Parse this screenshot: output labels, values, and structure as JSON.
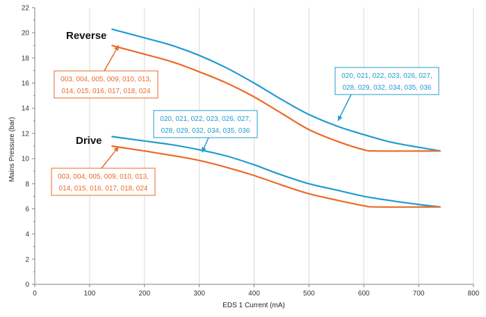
{
  "colors": {
    "blue": "#1f9bd1",
    "orange": "#ea6a26",
    "grid": "#d9d9d9",
    "axis": "#7f7f7f"
  },
  "chart_data": {
    "type": "line",
    "title": "",
    "xlabel": "EDS 1 Current (mA)",
    "ylabel": "Mains Pressure (bar)",
    "xlim": [
      0,
      800
    ],
    "ylim": [
      0,
      22
    ],
    "xticks": [
      0,
      100,
      200,
      300,
      400,
      500,
      600,
      700,
      800
    ],
    "yticks": [
      0,
      2,
      4,
      6,
      8,
      10,
      12,
      14,
      16,
      18,
      20,
      22
    ],
    "grid": {
      "x": true,
      "y": false
    },
    "legend": "none",
    "groups": [
      {
        "label": "Reverse"
      },
      {
        "label": "Drive"
      }
    ],
    "series": [
      {
        "group": "Reverse",
        "color": "#1f9bd1",
        "x": [
          140,
          200,
          250,
          300,
          350,
          400,
          450,
          500,
          550,
          600,
          650,
          700,
          740
        ],
        "y": [
          20.3,
          19.6,
          19.0,
          18.2,
          17.2,
          16.0,
          14.7,
          13.5,
          12.6,
          11.9,
          11.3,
          10.9,
          10.6
        ]
      },
      {
        "group": "Reverse",
        "color": "#ea6a26",
        "x": [
          140,
          200,
          250,
          300,
          350,
          400,
          450,
          500,
          550,
          600,
          625,
          740
        ],
        "y": [
          19.0,
          18.3,
          17.7,
          16.9,
          16.0,
          14.9,
          13.6,
          12.3,
          11.4,
          10.7,
          10.6,
          10.6
        ]
      },
      {
        "group": "Drive",
        "color": "#1f9bd1",
        "x": [
          140,
          200,
          250,
          300,
          350,
          400,
          450,
          500,
          550,
          600,
          650,
          700,
          740
        ],
        "y": [
          11.75,
          11.4,
          11.1,
          10.7,
          10.2,
          9.5,
          8.7,
          8.0,
          7.5,
          7.0,
          6.65,
          6.35,
          6.15
        ]
      },
      {
        "group": "Drive",
        "color": "#ea6a26",
        "x": [
          140,
          200,
          250,
          300,
          350,
          400,
          450,
          500,
          550,
          600,
          625,
          740
        ],
        "y": [
          11.0,
          10.6,
          10.25,
          9.85,
          9.3,
          8.65,
          7.9,
          7.2,
          6.7,
          6.25,
          6.15,
          6.15
        ]
      }
    ],
    "annotations": [
      {
        "lines": [
          "003, 004, 005, 009, 010, 013,",
          "014, 015, 016, 017, 018, 024"
        ],
        "color": "#ea6a26",
        "target": [
          153,
          19.0
        ]
      },
      {
        "lines": [
          "020, 021, 022, 023, 026, 027,",
          "028, 029, 032, 034, 035, 036"
        ],
        "color": "#1f9bd1",
        "target": [
          553,
          13.0
        ]
      },
      {
        "lines": [
          "020, 021, 022, 023, 026, 027,",
          "028, 029, 032, 034, 035, 036"
        ],
        "color": "#1f9bd1",
        "target": [
          305,
          10.5
        ]
      },
      {
        "lines": [
          "003, 004, 005, 009, 010, 013,",
          "014, 015, 016, 017, 018, 024"
        ],
        "color": "#ea6a26",
        "target": [
          153,
          10.95
        ]
      }
    ]
  }
}
